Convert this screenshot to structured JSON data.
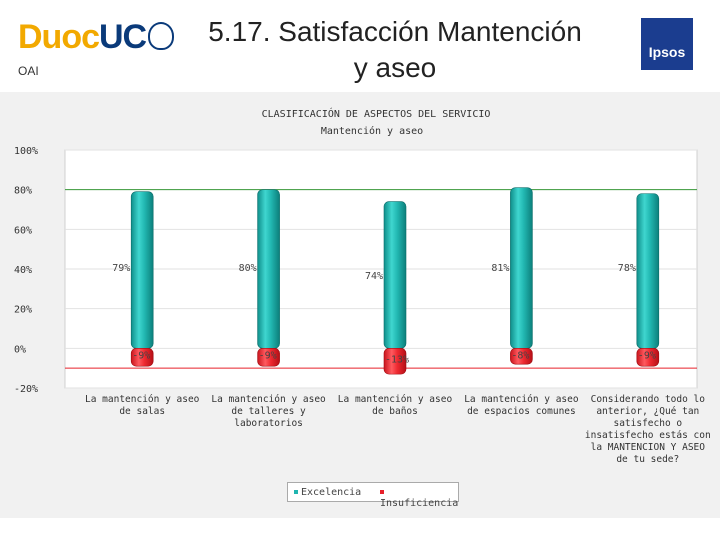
{
  "header": {
    "logo_duoc": "Duoc",
    "logo_uc": "UC",
    "oai": "OAI",
    "title_line1": "5.17. Satisfacción Mantención",
    "title_line2": "y aseo",
    "logo_ipsos": "Ipsos"
  },
  "chart_data": {
    "type": "bar",
    "title": "CLASIFICACIÓN DE ASPECTOS DEL SERVICIO",
    "subtitle": "Mantención y aseo",
    "ylim": [
      -20,
      100
    ],
    "yticks": [
      "100%",
      "80%",
      "60%",
      "40%",
      "20%",
      "0%",
      "-20%"
    ],
    "ytick_values": [
      100,
      80,
      60,
      40,
      20,
      0,
      -20
    ],
    "categories": [
      [
        "La mantención y aseo",
        "de salas"
      ],
      [
        "La mantención y aseo",
        "de talleres y",
        "laboratorios"
      ],
      [
        "La mantención y aseo",
        "de baños"
      ],
      [
        "La mantención y aseo",
        "de espacios comunes"
      ],
      [
        "Considerando todo lo",
        "anterior, ¿Qué tan",
        "satisfecho o",
        "insatisfecho estás con",
        "la MANTENCION Y ASEO",
        "de tu sede?"
      ]
    ],
    "series": [
      {
        "name": "Excelencia",
        "values": [
          79,
          80,
          74,
          81,
          78
        ],
        "labels": [
          "79%",
          "80%",
          "74%",
          "81%",
          "78%"
        ],
        "color": "#1fb5b0"
      },
      {
        "name": "Insuficiencia",
        "values": [
          -9,
          -9,
          -13,
          -8,
          -9
        ],
        "labels": [
          "-9%",
          "-9%",
          "-13%",
          "-8%",
          "-9%"
        ],
        "color": "#e8202a"
      }
    ],
    "reference_lines": [
      80,
      -10
    ],
    "grid": true,
    "legend_position": "bottom"
  }
}
